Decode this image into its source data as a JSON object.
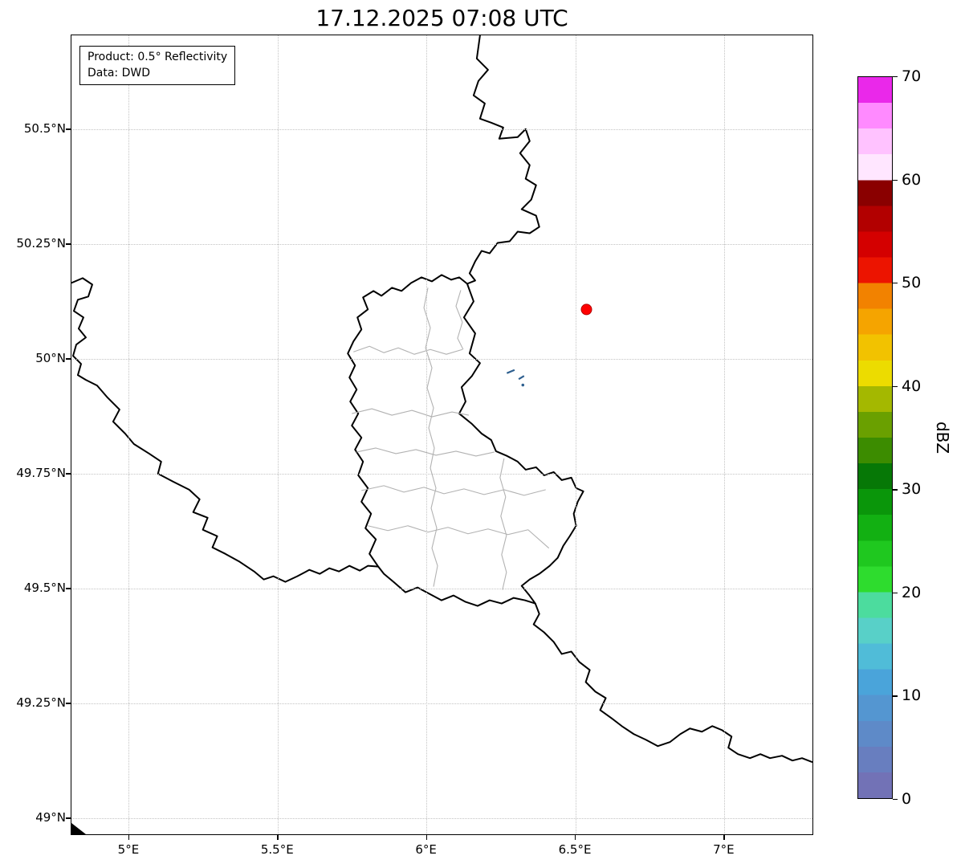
{
  "title": "17.12.2025 07:08 UTC",
  "info_box": {
    "line1": "Product: 0.5° Reflectivity",
    "line2": "Data: DWD"
  },
  "axes": {
    "x_ticks": [
      {
        "label": "5°E",
        "lon": 5.0
      },
      {
        "label": "5.5°E",
        "lon": 5.5
      },
      {
        "label": "6°E",
        "lon": 6.0
      },
      {
        "label": "6.5°E",
        "lon": 6.5
      },
      {
        "label": "7°E",
        "lon": 7.0
      }
    ],
    "y_ticks": [
      {
        "label": "50.5°N",
        "lat": 50.5
      },
      {
        "label": "50.25°N",
        "lat": 50.25
      },
      {
        "label": "50°N",
        "lat": 50.0
      },
      {
        "label": "49.75°N",
        "lat": 49.75
      },
      {
        "label": "49.5°N",
        "lat": 49.5
      },
      {
        "label": "49.25°N",
        "lat": 49.25
      },
      {
        "label": "49°N",
        "lat": 49.0
      }
    ]
  },
  "colorbar": {
    "label": "dBZ",
    "min": 0,
    "max": 70,
    "ticks": [
      0,
      10,
      20,
      30,
      40,
      50,
      60,
      70
    ],
    "stops": [
      {
        "v": 0,
        "c": "#7272b6"
      },
      {
        "v": 2.5,
        "c": "#687ebf"
      },
      {
        "v": 5,
        "c": "#5e8ac8"
      },
      {
        "v": 7.5,
        "c": "#5496d1"
      },
      {
        "v": 10,
        "c": "#4aa4da"
      },
      {
        "v": 12.5,
        "c": "#50bcd8"
      },
      {
        "v": 15,
        "c": "#58d0c8"
      },
      {
        "v": 17.5,
        "c": "#4cdc9e"
      },
      {
        "v": 20,
        "c": "#2edc2e"
      },
      {
        "v": 22.5,
        "c": "#1fc81f"
      },
      {
        "v": 25,
        "c": "#12b012"
      },
      {
        "v": 27.5,
        "c": "#0a960a"
      },
      {
        "v": 30,
        "c": "#067806"
      },
      {
        "v": 32.5,
        "c": "#3c8c00"
      },
      {
        "v": 35,
        "c": "#6aa000"
      },
      {
        "v": 37.5,
        "c": "#a4b800"
      },
      {
        "v": 40,
        "c": "#ecdc00"
      },
      {
        "v": 42.5,
        "c": "#f2c200"
      },
      {
        "v": 45,
        "c": "#f5a400"
      },
      {
        "v": 47.5,
        "c": "#f28200"
      },
      {
        "v": 50,
        "c": "#ec1400"
      },
      {
        "v": 52.5,
        "c": "#d40000"
      },
      {
        "v": 55,
        "c": "#b20000"
      },
      {
        "v": 57.5,
        "c": "#8a0000"
      },
      {
        "v": 60,
        "c": "#ffe6ff"
      },
      {
        "v": 62.5,
        "c": "#ffc2ff"
      },
      {
        "v": 65,
        "c": "#ff8aff"
      },
      {
        "v": 67.5,
        "c": "#ea28ea"
      }
    ]
  },
  "markers": {
    "radar_site": {
      "lon": 6.54,
      "lat": 50.107,
      "color": "#ff0000",
      "edge": "#b30000"
    }
  },
  "echoes": {
    "color": "#2e5f8f",
    "segments": [
      {
        "lon1": 6.272,
        "lat1": 49.968,
        "lon2": 6.298,
        "lat2": 49.975
      },
      {
        "lon1": 6.312,
        "lat1": 49.955,
        "lon2": 6.33,
        "lat2": 49.962
      }
    ],
    "dots": [
      {
        "lon": 6.326,
        "lat": 49.942
      }
    ]
  }
}
